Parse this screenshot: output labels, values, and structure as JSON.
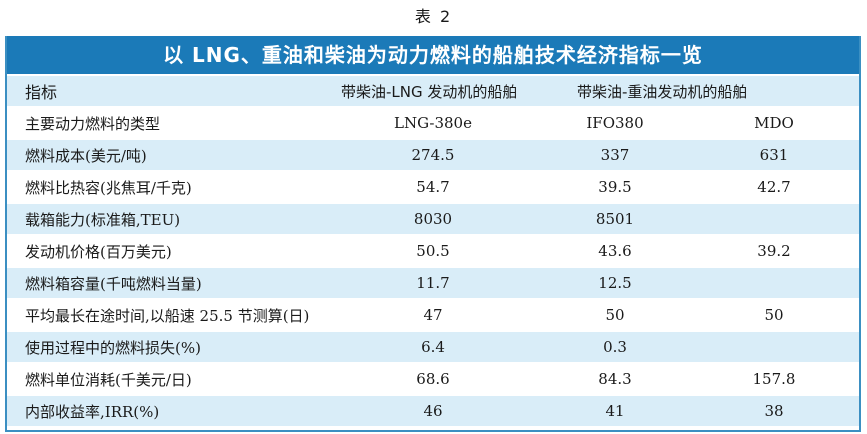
{
  "caption": "表 2",
  "table": {
    "title": "以 LNG、重油和柴油为动力燃料的船舶技术经济指标一览",
    "header": {
      "col0": "指标",
      "col1": "带柴油-LNG 发动机的船舶",
      "col2": "带柴油-重油发动机的船舶"
    },
    "rows": [
      {
        "label": "主要动力燃料的类型",
        "lng": "LNG-380e",
        "hfo": "IFO380",
        "mdo": "MDO"
      },
      {
        "label": "燃料成本(美元/吨)",
        "lng": "274.5",
        "hfo": "337",
        "mdo": "631"
      },
      {
        "label": "燃料比热容(兆焦耳/千克)",
        "lng": "54.7",
        "hfo": "39.5",
        "mdo": "42.7"
      },
      {
        "label": "载箱能力(标准箱,TEU)",
        "lng": "8030",
        "hfo": "8501",
        "mdo": ""
      },
      {
        "label": "发动机价格(百万美元)",
        "lng": "50.5",
        "hfo": "43.6",
        "mdo": "39.2"
      },
      {
        "label": "燃料箱容量(千吨燃料当量)",
        "lng": "11.7",
        "hfo": "12.5",
        "mdo": ""
      },
      {
        "label": "平均最长在途时间,以船速 25.5 节测算(日)",
        "lng": "47",
        "hfo": "50",
        "mdo": "50"
      },
      {
        "label": "使用过程中的燃料损失(%)",
        "lng": "6.4",
        "hfo": "0.3",
        "mdo": ""
      },
      {
        "label": "燃料单位消耗(千美元/日)",
        "lng": "68.6",
        "hfo": "84.3",
        "mdo": "157.8"
      },
      {
        "label": "内部收益率,IRR(%)",
        "lng": "46",
        "hfo": "41",
        "mdo": "38"
      }
    ]
  }
}
